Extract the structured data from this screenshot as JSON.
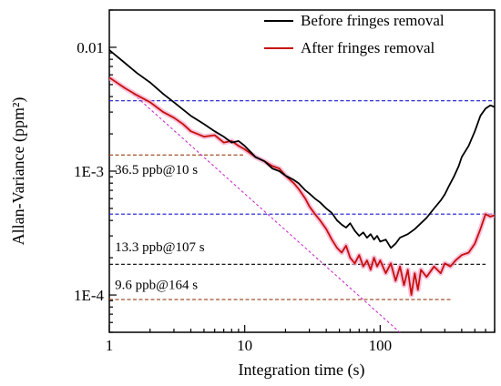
{
  "chart_data": {
    "type": "line",
    "xscale": "log",
    "yscale": "log",
    "xlabel": "Integration time (s)",
    "ylabel": "Allan-Variance (ppm²)",
    "xlim": [
      1,
      700
    ],
    "ylim": [
      5e-05,
      0.02
    ],
    "xticks": [
      {
        "value": 1,
        "label": "1"
      },
      {
        "value": 10,
        "label": "10"
      },
      {
        "value": 100,
        "label": "100"
      }
    ],
    "yticks": [
      {
        "value": 0.0001,
        "label": "1E-4"
      },
      {
        "value": 0.001,
        "label": "1E-3"
      },
      {
        "value": 0.01,
        "label": "0.01"
      }
    ],
    "legend_position": "top-right",
    "series": [
      {
        "name": "Before fringes removal",
        "color": "#000000",
        "points": [
          [
            1,
            0.0095
          ],
          [
            1.3,
            0.0075
          ],
          [
            1.6,
            0.0062
          ],
          [
            2,
            0.0052
          ],
          [
            2.5,
            0.0042
          ],
          [
            3,
            0.0036
          ],
          [
            4,
            0.0028
          ],
          [
            5,
            0.0024
          ],
          [
            6,
            0.0021
          ],
          [
            7,
            0.0019
          ],
          [
            8,
            0.0017
          ],
          [
            9,
            0.00175
          ],
          [
            10,
            0.0016
          ],
          [
            12,
            0.0013
          ],
          [
            14,
            0.0012
          ],
          [
            16,
            0.00105
          ],
          [
            18,
            0.001
          ],
          [
            20,
            0.00092
          ],
          [
            23,
            0.00085
          ],
          [
            25,
            0.0008
          ],
          [
            28,
            0.0007
          ],
          [
            30,
            0.00066
          ],
          [
            33,
            0.0006
          ],
          [
            36,
            0.00056
          ],
          [
            40,
            0.0005
          ],
          [
            44,
            0.00046
          ],
          [
            48,
            0.0004
          ],
          [
            52,
            0.00037
          ],
          [
            56,
            0.00035
          ],
          [
            60,
            0.00038
          ],
          [
            65,
            0.00033
          ],
          [
            70,
            0.0003
          ],
          [
            75,
            0.00032
          ],
          [
            80,
            0.00029
          ],
          [
            85,
            0.00031
          ],
          [
            90,
            0.00028
          ],
          [
            95,
            0.0003
          ],
          [
            100,
            0.00027
          ],
          [
            110,
            0.00028
          ],
          [
            120,
            0.00024
          ],
          [
            130,
            0.00026
          ],
          [
            140,
            0.00029
          ],
          [
            160,
            0.00031
          ],
          [
            180,
            0.00034
          ],
          [
            200,
            0.00038
          ],
          [
            220,
            0.00042
          ],
          [
            250,
            0.0005
          ],
          [
            280,
            0.00058
          ],
          [
            300,
            0.00065
          ],
          [
            320,
            0.00075
          ],
          [
            350,
            0.0009
          ],
          [
            380,
            0.0011
          ],
          [
            400,
            0.0013
          ],
          [
            450,
            0.0016
          ],
          [
            500,
            0.0021
          ],
          [
            550,
            0.0028
          ],
          [
            600,
            0.0032
          ],
          [
            650,
            0.0034
          ],
          [
            700,
            0.0033
          ]
        ]
      },
      {
        "name": "After fringes removal",
        "color": "#c8100a",
        "points": [
          [
            1,
            0.0057
          ],
          [
            1.3,
            0.0047
          ],
          [
            1.6,
            0.0041
          ],
          [
            2,
            0.0036
          ],
          [
            2.5,
            0.003
          ],
          [
            3,
            0.0027
          ],
          [
            3.5,
            0.0024
          ],
          [
            4,
            0.0021
          ],
          [
            5,
            0.0019
          ],
          [
            6,
            0.00195
          ],
          [
            7,
            0.0017
          ],
          [
            8,
            0.00175
          ],
          [
            9,
            0.0016
          ],
          [
            10,
            0.0015
          ],
          [
            12,
            0.0013
          ],
          [
            14,
            0.0012
          ],
          [
            16,
            0.0011
          ],
          [
            18,
            0.00105
          ],
          [
            20,
            0.00092
          ],
          [
            23,
            0.0008
          ],
          [
            25,
            0.00072
          ],
          [
            28,
            0.0006
          ],
          [
            30,
            0.00052
          ],
          [
            33,
            0.00045
          ],
          [
            36,
            0.0004
          ],
          [
            40,
            0.00034
          ],
          [
            44,
            0.00028
          ],
          [
            48,
            0.00024
          ],
          [
            52,
            0.00022
          ],
          [
            56,
            0.00025
          ],
          [
            60,
            0.0002
          ],
          [
            65,
            0.00018
          ],
          [
            70,
            0.00021
          ],
          [
            75,
            0.00017
          ],
          [
            80,
            0.00019
          ],
          [
            85,
            0.00016
          ],
          [
            90,
            0.0002
          ],
          [
            95,
            0.00017
          ],
          [
            100,
            0.00019
          ],
          [
            110,
            0.00015
          ],
          [
            120,
            0.00018
          ],
          [
            130,
            0.00013
          ],
          [
            140,
            0.00017
          ],
          [
            150,
            0.00012
          ],
          [
            160,
            0.00016
          ],
          [
            170,
            0.0001
          ],
          [
            180,
            0.00015
          ],
          [
            190,
            0.00011
          ],
          [
            200,
            0.00016
          ],
          [
            220,
            0.00014
          ],
          [
            250,
            0.00017
          ],
          [
            280,
            0.00015
          ],
          [
            300,
            0.00018
          ],
          [
            330,
            0.00017
          ],
          [
            360,
            0.00019
          ],
          [
            400,
            0.00021
          ],
          [
            450,
            0.00022
          ],
          [
            500,
            0.00026
          ],
          [
            550,
            0.00034
          ],
          [
            600,
            0.00045
          ],
          [
            650,
            0.00043
          ],
          [
            700,
            0.00044
          ]
        ]
      }
    ],
    "reference_lines": [
      {
        "kind": "horizontal",
        "color": "#1a1ad0",
        "y": 0.0037,
        "x_range": [
          1,
          700
        ]
      },
      {
        "kind": "horizontal",
        "color": "#1a1ad0",
        "y": 0.00045,
        "x_range": [
          1,
          700
        ]
      },
      {
        "kind": "horizontal",
        "color": "#a0522d",
        "y": 0.00135,
        "x_range": [
          1,
          10
        ]
      },
      {
        "kind": "horizontal",
        "color": "#000000",
        "y": 0.000177,
        "x_range": [
          1,
          600
        ]
      },
      {
        "kind": "horizontal",
        "color": "#a0522d",
        "y": 9.2e-05,
        "x_range": [
          1,
          330
        ]
      },
      {
        "kind": "diagonal",
        "color": "#cc33cc",
        "points": [
          [
            1.5,
            0.0042
          ],
          [
            220,
            3.2e-05
          ]
        ]
      }
    ],
    "annotations": [
      {
        "text": "36.5 ppb@10 s",
        "x": 1.1,
        "y": 0.00095
      },
      {
        "text": "13.3 ppb@107 s",
        "x": 1.1,
        "y": 0.000225
      },
      {
        "text": "9.6 ppb@164 s",
        "x": 1.1,
        "y": 0.000112
      }
    ]
  }
}
